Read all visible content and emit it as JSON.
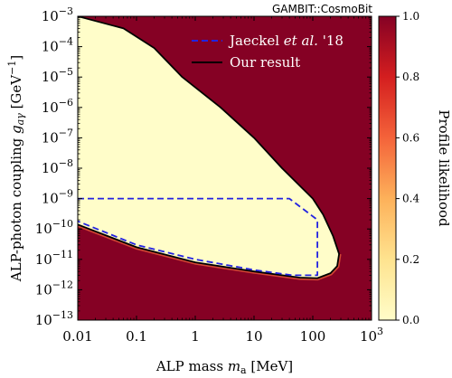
{
  "chart_data": {
    "type": "heatmap",
    "watermark": "GAMBIT::CosmoBit",
    "xlabel": "ALP mass m_a [MeV]",
    "ylabel": "ALP-photon coupling g_aγ [GeV⁻¹]",
    "colorbar_label": "Profile likelihood",
    "x_scale": "log",
    "y_scale": "log",
    "xlim": [
      0.01,
      1000
    ],
    "ylim": [
      1e-13,
      0.001
    ],
    "x_ticks": [
      {
        "value": 0.01,
        "label": "0.01"
      },
      {
        "value": 0.1,
        "label": "0.1"
      },
      {
        "value": 1,
        "label": "1"
      },
      {
        "value": 10,
        "label": "10"
      },
      {
        "value": 100,
        "label": "100"
      },
      {
        "value": 1000,
        "label": "10",
        "exp": "3"
      }
    ],
    "y_ticks": [
      {
        "value": 1e-13,
        "base": "10",
        "exp": "−13"
      },
      {
        "value": 1e-12,
        "base": "10",
        "exp": "−12"
      },
      {
        "value": 1e-11,
        "base": "10",
        "exp": "−11"
      },
      {
        "value": 1e-10,
        "base": "10",
        "exp": "−10"
      },
      {
        "value": 1e-09,
        "base": "10",
        "exp": "−9"
      },
      {
        "value": 1e-08,
        "base": "10",
        "exp": "−8"
      },
      {
        "value": 1e-07,
        "base": "10",
        "exp": "−7"
      },
      {
        "value": 1e-06,
        "base": "10",
        "exp": "−6"
      },
      {
        "value": 1e-05,
        "base": "10",
        "exp": "−5"
      },
      {
        "value": 0.0001,
        "base": "10",
        "exp": "−4"
      },
      {
        "value": 0.001,
        "base": "10",
        "exp": "−3"
      }
    ],
    "colorbar": {
      "range": [
        0,
        1
      ],
      "ticks": [
        "0.0",
        "0.2",
        "0.4",
        "0.6",
        "0.8",
        "1.0"
      ],
      "colors": [
        "#fffdc9",
        "#fee38f",
        "#fdb15a",
        "#f4633a",
        "#d41e1f",
        "#850124"
      ]
    },
    "background_color": "#850124",
    "allowed_region_color": "#fffdc9",
    "legend": {
      "position": "top-right",
      "entries": [
        {
          "label": "Jaeckel et al. '18",
          "style": "dashed",
          "color": "#2323e0"
        },
        {
          "label": "Our result",
          "style": "solid",
          "color": "#000000"
        }
      ]
    },
    "series": [
      {
        "name": "Our result",
        "style": "solid",
        "color": "#000000",
        "points": [
          [
            0.01,
            0.001
          ],
          [
            0.06,
            0.0004
          ],
          [
            0.2,
            9e-05
          ],
          [
            0.6,
            1e-05
          ],
          [
            2.7,
            1e-06
          ],
          [
            10,
            1e-07
          ],
          [
            30,
            1e-08
          ],
          [
            100,
            1e-09
          ],
          [
            150,
            3e-10
          ],
          [
            220,
            6e-11
          ],
          [
            280,
            1.5e-11
          ],
          [
            260,
            6e-12
          ],
          [
            200,
            3.5e-12
          ],
          [
            120,
            2.4e-12
          ],
          [
            60,
            2.5e-12
          ],
          [
            10,
            4e-12
          ],
          [
            1,
            8e-12
          ],
          [
            0.1,
            2.5e-11
          ],
          [
            0.01,
            1.4e-10
          ]
        ]
      },
      {
        "name": "Jaeckel et al. '18",
        "style": "dashed",
        "color": "#2323e0",
        "points": [
          [
            0.01,
            1e-09
          ],
          [
            40,
            1e-09
          ],
          [
            120,
            2e-10
          ],
          [
            120,
            3e-12
          ],
          [
            45,
            3e-12
          ],
          [
            10,
            4.5e-12
          ],
          [
            1,
            1e-11
          ],
          [
            0.1,
            3e-11
          ],
          [
            0.01,
            1.8e-10
          ]
        ]
      }
    ]
  }
}
